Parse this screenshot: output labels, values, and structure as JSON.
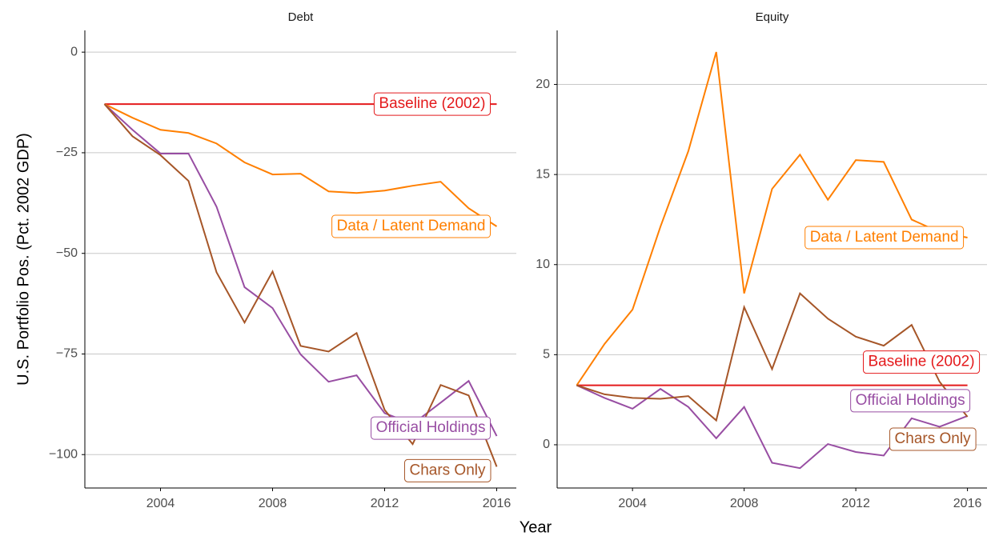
{
  "chart_data": [
    {
      "type": "line",
      "title": "Debt",
      "ylabel": "U.S. Portfolio Pos. (Pct. 2002 GDP)",
      "xlabel": "Year",
      "x": [
        2002,
        2003,
        2004,
        2005,
        2006,
        2007,
        2008,
        2009,
        2010,
        2011,
        2012,
        2013,
        2014,
        2015,
        2016
      ],
      "xlim": [
        2001.3,
        2016.7
      ],
      "xticks": [
        2004,
        2008,
        2012,
        2016
      ],
      "ylim": [
        -108.3,
        5.4
      ],
      "yticks": [
        {
          "value": -100,
          "label": "−100"
        },
        {
          "value": -75,
          "label": "−75"
        },
        {
          "value": -50,
          "label": "−50"
        },
        {
          "value": -25,
          "label": "−25"
        },
        0
      ],
      "grid": true,
      "series": [
        {
          "name": "Baseline (2002)",
          "color": "#e41a1c",
          "values": [
            -12.9,
            -12.9,
            -12.9,
            -12.9,
            -12.9,
            -12.9,
            -12.9,
            -12.9,
            -12.9,
            -12.9,
            -12.9,
            -12.9,
            -12.9,
            -12.9,
            -12.9
          ]
        },
        {
          "name": "Data / Latent Demand",
          "color": "#ff7f00",
          "values": [
            -12.9,
            -16.3,
            -19.3,
            -20.1,
            -22.7,
            -27.4,
            -30.4,
            -30.2,
            -34.6,
            -35.0,
            -34.4,
            -33.2,
            -32.2,
            -38.8,
            -43.3
          ]
        },
        {
          "name": "Official Holdings",
          "color": "#984ea3",
          "values": [
            -12.9,
            -19.3,
            -25.2,
            -25.2,
            -38.4,
            -58.4,
            -63.6,
            -75.1,
            -81.9,
            -80.3,
            -89.7,
            -92.4,
            -87.1,
            -81.7,
            -95.4
          ]
        },
        {
          "name": "Chars Only",
          "color": "#a65628",
          "values": [
            -12.9,
            -20.9,
            -25.6,
            -32.0,
            -54.7,
            -67.2,
            -54.5,
            -73.0,
            -74.4,
            -69.8,
            -88.9,
            -97.4,
            -82.7,
            -85.3,
            -103.0
          ]
        }
      ]
    },
    {
      "type": "line",
      "title": "Equity",
      "x": [
        2002,
        2003,
        2004,
        2005,
        2006,
        2007,
        2008,
        2009,
        2010,
        2011,
        2012,
        2013,
        2014,
        2015,
        2016
      ],
      "xlim": [
        2001.3,
        2016.7
      ],
      "xticks": [
        2004,
        2008,
        2012,
        2016
      ],
      "ylim": [
        -2.4,
        23.0
      ],
      "yticks": [
        0,
        5,
        10,
        15,
        20
      ],
      "grid": true,
      "series": [
        {
          "name": "Baseline (2002)",
          "color": "#e41a1c",
          "values": [
            3.3,
            3.3,
            3.3,
            3.3,
            3.3,
            3.3,
            3.3,
            3.3,
            3.3,
            3.3,
            3.3,
            3.3,
            3.3,
            3.3,
            3.3
          ]
        },
        {
          "name": "Data / Latent Demand",
          "color": "#ff7f00",
          "values": [
            3.3,
            5.6,
            7.5,
            12.1,
            16.3,
            21.8,
            8.4,
            14.2,
            16.1,
            13.6,
            15.8,
            15.7,
            12.5,
            11.8,
            11.5
          ]
        },
        {
          "name": "Official Holdings",
          "color": "#984ea3",
          "values": [
            3.3,
            2.6,
            2.0,
            3.1,
            2.1,
            0.36,
            2.1,
            -1.0,
            -1.3,
            0.04,
            -0.4,
            -0.6,
            1.47,
            1.0,
            1.6
          ]
        },
        {
          "name": "Chars Only",
          "color": "#a65628",
          "values": [
            3.3,
            2.8,
            2.6,
            2.55,
            2.7,
            1.35,
            7.64,
            4.2,
            8.4,
            7.0,
            6.0,
            5.5,
            6.65,
            3.5,
            1.55
          ]
        }
      ]
    }
  ]
}
